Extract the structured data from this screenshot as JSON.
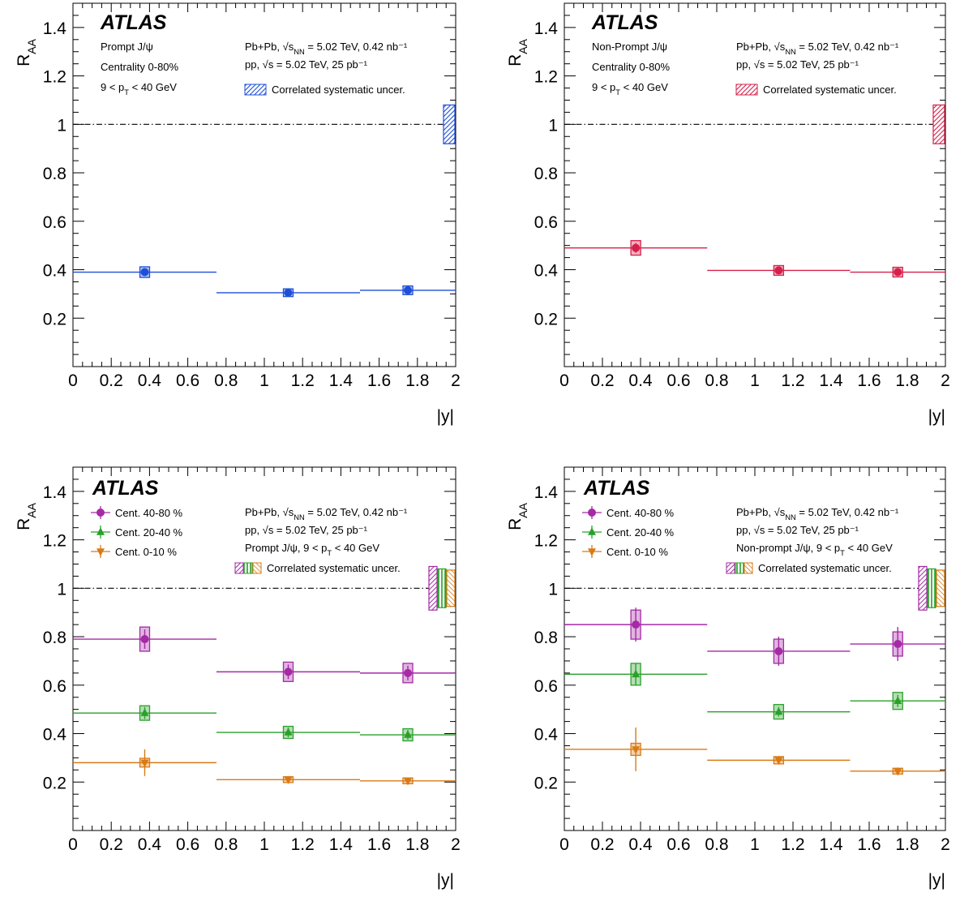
{
  "chart_data": [
    {
      "type": "scatter",
      "experiment": "ATLAS",
      "y_axis_label": "R_AA",
      "x_axis_label": "|y|",
      "xlim": [
        0,
        2
      ],
      "ylim": [
        0,
        1.5
      ],
      "x_ticks": [
        "0",
        "0.2",
        "0.4",
        "0.6",
        "0.8",
        "1",
        "1.2",
        "1.4",
        "1.6",
        "1.8",
        "2"
      ],
      "y_ticks": [
        "0.2",
        "0.4",
        "0.6",
        "0.8",
        "1",
        "1.2",
        "1.4"
      ],
      "reference_line": 1,
      "info_left": [
        "Prompt J/ψ",
        "Centrality 0-80%",
        "9 < p_T < 40 GeV"
      ],
      "info_right": [
        "Pb+Pb, √s_NN = 5.02 TeV, 0.42 nb⁻¹",
        "pp, √s = 5.02 TeV, 25 pb⁻¹"
      ],
      "syst_label": "Correlated systematic uncer.",
      "x_bins": [
        [
          0,
          0.75
        ],
        [
          0.75,
          1.5
        ],
        [
          1.5,
          2.0
        ]
      ],
      "x_centers": [
        0.375,
        1.125,
        1.75
      ],
      "series": [
        {
          "marker": "circle",
          "color": "#1f4fd8",
          "values": [
            0.39,
            0.305,
            0.315
          ],
          "stat_err": [
            0.015,
            0.01,
            0.01
          ],
          "syst_err": [
            0.022,
            0.016,
            0.018
          ],
          "corr_syst": 0.08
        }
      ]
    },
    {
      "type": "scatter",
      "experiment": "ATLAS",
      "y_axis_label": "R_AA",
      "x_axis_label": "|y|",
      "xlim": [
        0,
        2
      ],
      "ylim": [
        0,
        1.5
      ],
      "x_ticks": [
        "0",
        "0.2",
        "0.4",
        "0.6",
        "0.8",
        "1",
        "1.2",
        "1.4",
        "1.6",
        "1.8",
        "2"
      ],
      "y_ticks": [
        "0.2",
        "0.4",
        "0.6",
        "0.8",
        "1",
        "1.2",
        "1.4"
      ],
      "reference_line": 1,
      "info_left": [
        "Non-Prompt J/ψ",
        "Centrality 0-80%",
        "9 < p_T < 40 GeV"
      ],
      "info_right": [
        "Pb+Pb, √s_NN = 5.02 TeV, 0.42 nb⁻¹",
        "pp, √s = 5.02 TeV, 25 pb⁻¹"
      ],
      "syst_label": "Correlated systematic uncer.",
      "x_bins": [
        [
          0,
          0.75
        ],
        [
          0.75,
          1.5
        ],
        [
          1.5,
          2.0
        ]
      ],
      "x_centers": [
        0.375,
        1.125,
        1.75
      ],
      "series": [
        {
          "marker": "circle",
          "color": "#d6204a",
          "values": [
            0.49,
            0.397,
            0.39
          ],
          "stat_err": [
            0.02,
            0.015,
            0.015
          ],
          "syst_err": [
            0.03,
            0.02,
            0.02
          ],
          "corr_syst": 0.08
        }
      ]
    },
    {
      "type": "scatter",
      "experiment": "ATLAS",
      "y_axis_label": "R_AA",
      "x_axis_label": "|y|",
      "xlim": [
        0,
        2
      ],
      "ylim": [
        0,
        1.5
      ],
      "x_ticks": [
        "0",
        "0.2",
        "0.4",
        "0.6",
        "0.8",
        "1",
        "1.2",
        "1.4",
        "1.6",
        "1.8",
        "2"
      ],
      "y_ticks": [
        "0.2",
        "0.4",
        "0.6",
        "0.8",
        "1",
        "1.2",
        "1.4"
      ],
      "reference_line": 1,
      "legend": [
        "Cent. 40-80 %",
        "Cent. 20-40 %",
        "Cent. 0-10 %"
      ],
      "info_right": [
        "Pb+Pb, √s_NN = 5.02 TeV, 0.42 nb⁻¹",
        "pp, √s = 5.02 TeV, 25 pb⁻¹",
        "Prompt J/ψ, 9 < p_T < 40 GeV"
      ],
      "syst_label": "Correlated systematic uncer.",
      "x_bins": [
        [
          0,
          0.75
        ],
        [
          0.75,
          1.5
        ],
        [
          1.5,
          2.0
        ]
      ],
      "x_centers": [
        0.375,
        1.125,
        1.75
      ],
      "series": [
        {
          "name": "Cent. 40-80 %",
          "marker": "circle",
          "color": "#a52aa5",
          "values": [
            0.79,
            0.655,
            0.65
          ],
          "stat_err": [
            0.04,
            0.03,
            0.03
          ],
          "syst_err": [
            0.05,
            0.04,
            0.04
          ],
          "corr_syst": 0.09
        },
        {
          "name": "Cent. 20-40 %",
          "marker": "triangle-up",
          "color": "#2aa02a",
          "values": [
            0.485,
            0.405,
            0.395
          ],
          "stat_err": [
            0.025,
            0.02,
            0.02
          ],
          "syst_err": [
            0.03,
            0.025,
            0.025
          ],
          "corr_syst": 0.08
        },
        {
          "name": "Cent. 0-10 %",
          "marker": "triangle-down",
          "color": "#d97a14",
          "values": [
            0.28,
            0.21,
            0.205
          ],
          "stat_err": [
            0.055,
            0.015,
            0.01
          ],
          "syst_err": [
            0.018,
            0.012,
            0.012
          ],
          "corr_syst": 0.075
        }
      ]
    },
    {
      "type": "scatter",
      "experiment": "ATLAS",
      "y_axis_label": "R_AA",
      "x_axis_label": "|y|",
      "xlim": [
        0,
        2
      ],
      "ylim": [
        0,
        1.5
      ],
      "x_ticks": [
        "0",
        "0.2",
        "0.4",
        "0.6",
        "0.8",
        "1",
        "1.2",
        "1.4",
        "1.6",
        "1.8",
        "2"
      ],
      "y_ticks": [
        "0.2",
        "0.4",
        "0.6",
        "0.8",
        "1",
        "1.2",
        "1.4"
      ],
      "reference_line": 1,
      "legend": [
        "Cent. 40-80 %",
        "Cent. 20-40 %",
        "Cent. 0-10 %"
      ],
      "info_right": [
        "Pb+Pb, √s_NN = 5.02 TeV, 0.42 nb⁻¹",
        "pp, √s = 5.02 TeV, 25 pb⁻¹",
        "Non-prompt J/ψ, 9 < p_T < 40 GeV"
      ],
      "syst_label": "Correlated systematic uncer.",
      "x_bins": [
        [
          0,
          0.75
        ],
        [
          0.75,
          1.5
        ],
        [
          1.5,
          2.0
        ]
      ],
      "x_centers": [
        0.375,
        1.125,
        1.75
      ],
      "series": [
        {
          "name": "Cent. 40-80 %",
          "marker": "circle",
          "color": "#a52aa5",
          "values": [
            0.85,
            0.74,
            0.77
          ],
          "stat_err": [
            0.07,
            0.06,
            0.07
          ],
          "syst_err": [
            0.06,
            0.05,
            0.05
          ],
          "corr_syst": 0.09
        },
        {
          "name": "Cent. 20-40 %",
          "marker": "triangle-up",
          "color": "#2aa02a",
          "values": [
            0.645,
            0.49,
            0.535
          ],
          "stat_err": [
            0.045,
            0.02,
            0.025
          ],
          "syst_err": [
            0.045,
            0.03,
            0.035
          ],
          "corr_syst": 0.08
        },
        {
          "name": "Cent. 0-10 %",
          "marker": "triangle-down",
          "color": "#d97a14",
          "values": [
            0.335,
            0.29,
            0.245
          ],
          "stat_err": [
            0.09,
            0.015,
            0.015
          ],
          "syst_err": [
            0.025,
            0.015,
            0.012
          ],
          "corr_syst": 0.075
        }
      ]
    }
  ]
}
